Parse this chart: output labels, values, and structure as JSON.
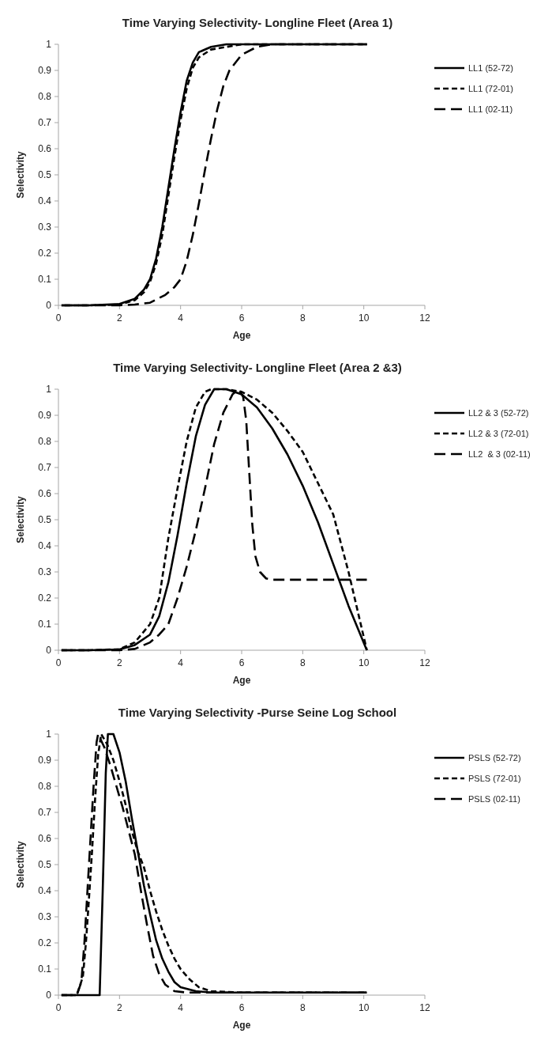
{
  "chart_data": [
    {
      "type": "line",
      "title": "Time Varying Selectivity- Longline Fleet (Area 1)",
      "xlabel": "Age",
      "ylabel": "Selectivity",
      "xlim": [
        0,
        12
      ],
      "xticks": [
        0,
        2,
        4,
        6,
        8,
        10,
        12
      ],
      "ylim": [
        0,
        1
      ],
      "yticks": [
        0,
        0.1,
        0.2,
        0.3,
        0.4,
        0.5,
        0.6,
        0.7,
        0.8,
        0.9,
        1
      ],
      "grid": false,
      "legend": "right",
      "series": [
        {
          "name": "LL1 (52-72)",
          "color": "#000000",
          "line_style": "solid",
          "x": [
            0.1,
            1,
            2,
            2.5,
            2.8,
            3,
            3.2,
            3.4,
            3.6,
            3.8,
            4,
            4.2,
            4.4,
            4.6,
            5,
            5.5,
            6,
            8,
            10.1
          ],
          "values": [
            0,
            0,
            0.005,
            0.025,
            0.06,
            0.1,
            0.18,
            0.3,
            0.45,
            0.6,
            0.74,
            0.86,
            0.93,
            0.97,
            0.99,
            1,
            1,
            1,
            1
          ]
        },
        {
          "name": "LL1 (72-01)",
          "color": "#000000",
          "line_style": "dashed",
          "x": [
            0.2,
            1,
            2,
            2.5,
            2.8,
            3,
            3.2,
            3.4,
            3.6,
            3.8,
            4,
            4.2,
            4.4,
            4.6,
            5,
            5.5,
            6,
            8,
            10.1
          ],
          "values": [
            0,
            0,
            0.003,
            0.02,
            0.05,
            0.09,
            0.16,
            0.27,
            0.42,
            0.57,
            0.71,
            0.83,
            0.91,
            0.95,
            0.98,
            0.99,
            1,
            1,
            1
          ]
        },
        {
          "name": "LL1 (02-11)",
          "color": "#000000",
          "line_style": "longdash",
          "x": [
            0.1,
            2,
            2.5,
            3,
            3.5,
            3.8,
            4,
            4.2,
            4.4,
            4.6,
            4.8,
            5,
            5.2,
            5.4,
            5.6,
            6,
            6.5,
            7,
            8,
            10.1
          ],
          "values": [
            0,
            0,
            0.003,
            0.01,
            0.04,
            0.07,
            0.1,
            0.17,
            0.27,
            0.39,
            0.52,
            0.64,
            0.75,
            0.84,
            0.9,
            0.96,
            0.99,
            1,
            1,
            1
          ]
        }
      ]
    },
    {
      "type": "line",
      "title": "Time Varying Selectivity- Longline Fleet (Area 2 &3)",
      "xlabel": "Age",
      "ylabel": "Selectivity",
      "xlim": [
        0,
        12
      ],
      "xticks": [
        0,
        2,
        4,
        6,
        8,
        10,
        12
      ],
      "ylim": [
        0,
        1
      ],
      "yticks": [
        0,
        0.1,
        0.2,
        0.3,
        0.4,
        0.5,
        0.6,
        0.7,
        0.8,
        0.9,
        1
      ],
      "grid": false,
      "legend": "right",
      "series": [
        {
          "name": "LL2 & 3 (52-72)",
          "color": "#000000",
          "line_style": "solid",
          "x": [
            0.1,
            1,
            2,
            2.5,
            3,
            3.3,
            3.6,
            3.9,
            4.2,
            4.5,
            4.8,
            5.1,
            5.5,
            6,
            6.5,
            7,
            7.5,
            8,
            8.5,
            9,
            9.5,
            10.1
          ],
          "values": [
            0,
            0,
            0.003,
            0.02,
            0.06,
            0.13,
            0.26,
            0.44,
            0.64,
            0.82,
            0.94,
            1,
            1,
            0.98,
            0.93,
            0.85,
            0.75,
            0.63,
            0.49,
            0.33,
            0.17,
            0
          ]
        },
        {
          "name": "LL2 & 3 (72-01)",
          "color": "#000000",
          "line_style": "dashed",
          "x": [
            0.1,
            1,
            2,
            2.5,
            3,
            3.3,
            3.6,
            3.9,
            4.2,
            4.5,
            4.8,
            5,
            5.5,
            6,
            6.5,
            7,
            7.5,
            8,
            8.5,
            9,
            9.5,
            9.8,
            10.1
          ],
          "values": [
            0,
            0,
            0.004,
            0.03,
            0.1,
            0.2,
            0.43,
            0.62,
            0.8,
            0.93,
            0.99,
            1,
            1,
            0.99,
            0.96,
            0.91,
            0.84,
            0.76,
            0.64,
            0.52,
            0.3,
            0.15,
            0
          ]
        },
        {
          "name": "LL2  & 3 (02-11)",
          "color": "#000000",
          "line_style": "longdash",
          "x": [
            0.1,
            2,
            2.5,
            3,
            3.3,
            3.6,
            3.9,
            4.2,
            4.5,
            4.8,
            5.1,
            5.4,
            5.7,
            5.9,
            6.05,
            6.15,
            6.25,
            6.35,
            6.45,
            6.6,
            6.8,
            7,
            8,
            10.1
          ],
          "values": [
            0,
            0,
            0.005,
            0.03,
            0.06,
            0.1,
            0.2,
            0.32,
            0.46,
            0.62,
            0.79,
            0.91,
            0.98,
            1,
            0.97,
            0.88,
            0.68,
            0.48,
            0.36,
            0.3,
            0.275,
            0.27,
            0.27,
            0.27
          ]
        }
      ]
    },
    {
      "type": "line",
      "title": "Time Varying Selectivity -Purse Seine Log School",
      "xlabel": "Age",
      "ylabel": "Selectivity",
      "xlim": [
        0,
        12
      ],
      "xticks": [
        0,
        2,
        4,
        6,
        8,
        10,
        12
      ],
      "ylim": [
        0,
        1
      ],
      "yticks": [
        0,
        0.1,
        0.2,
        0.3,
        0.4,
        0.5,
        0.6,
        0.7,
        0.8,
        0.9,
        1
      ],
      "grid": false,
      "legend": "right",
      "series": [
        {
          "name": "PSLS (52-72)",
          "color": "#000000",
          "line_style": "solid",
          "x": [
            0.1,
            1,
            1.35,
            1.45,
            1.55,
            1.62,
            1.8,
            2,
            2.2,
            2.4,
            2.6,
            2.8,
            3,
            3.2,
            3.4,
            3.6,
            3.8,
            4,
            4.5,
            5,
            10.1
          ],
          "values": [
            0,
            0,
            0,
            0.4,
            0.85,
            1,
            1,
            0.93,
            0.82,
            0.68,
            0.55,
            0.42,
            0.31,
            0.21,
            0.14,
            0.09,
            0.05,
            0.03,
            0.015,
            0.01,
            0.01
          ]
        },
        {
          "name": "PSLS (72-01)",
          "color": "#000000",
          "line_style": "dashed",
          "x": [
            0.1,
            0.6,
            0.8,
            0.9,
            1,
            1.1,
            1.2,
            1.3,
            1.4,
            1.6,
            1.8,
            2,
            2.2,
            2.4,
            2.6,
            2.8,
            3,
            3.2,
            3.4,
            3.6,
            3.8,
            4,
            4.3,
            4.6,
            5,
            6,
            10.1
          ],
          "values": [
            0,
            0,
            0.07,
            0.2,
            0.37,
            0.55,
            0.75,
            0.92,
            1,
            0.96,
            0.9,
            0.82,
            0.73,
            0.63,
            0.55,
            0.49,
            0.4,
            0.32,
            0.25,
            0.19,
            0.14,
            0.1,
            0.06,
            0.03,
            0.015,
            0.01,
            0.01
          ]
        },
        {
          "name": "PSLS (02-11)",
          "color": "#000000",
          "line_style": "longdash",
          "x": [
            0.1,
            0.6,
            0.75,
            0.85,
            0.95,
            1.05,
            1.15,
            1.25,
            1.3,
            1.5,
            1.7,
            1.9,
            2.1,
            2.3,
            2.5,
            2.7,
            2.9,
            3.1,
            3.3,
            3.5,
            3.8,
            4.2,
            10.1
          ],
          "values": [
            0,
            0,
            0.05,
            0.2,
            0.4,
            0.6,
            0.8,
            0.97,
            1,
            0.95,
            0.88,
            0.8,
            0.72,
            0.63,
            0.54,
            0.4,
            0.27,
            0.15,
            0.08,
            0.04,
            0.015,
            0.01,
            0.01
          ]
        }
      ]
    }
  ]
}
